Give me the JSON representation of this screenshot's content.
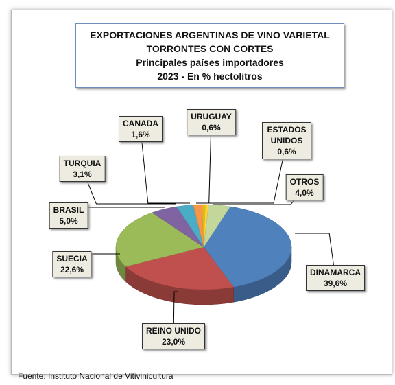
{
  "chart_data": {
    "type": "pie",
    "title": [
      "EXPORTACIONES ARGENTINAS DE VINO VARIETAL",
      "TORRONTES CON CORTES",
      "Principales países importadores",
      "2023 - En % hectolitros"
    ],
    "categories": [
      "DINAMARCA",
      "REINO UNIDO",
      "SUECIA",
      "BRASIL",
      "TURQUIA",
      "CANADA",
      "URUGUAY",
      "ESTADOS UNIDOS",
      "OTROS"
    ],
    "values": [
      39.6,
      23.0,
      22.6,
      5.0,
      3.1,
      1.6,
      0.6,
      0.6,
      4.0
    ],
    "value_labels": [
      "39,6%",
      "23,0%",
      "22,6%",
      "5,0%",
      "3,1%",
      "1,6%",
      "0,6%",
      "0,6%",
      "4,0%"
    ],
    "colors": [
      "#4f81bd",
      "#c0504d",
      "#9bbb59",
      "#8064a2",
      "#4bacc6",
      "#f79646",
      "#e8b820",
      "#ffd530",
      "#c4d79b"
    ],
    "source": "Fuente: Instituto Nacional de Vitivinicultura"
  }
}
